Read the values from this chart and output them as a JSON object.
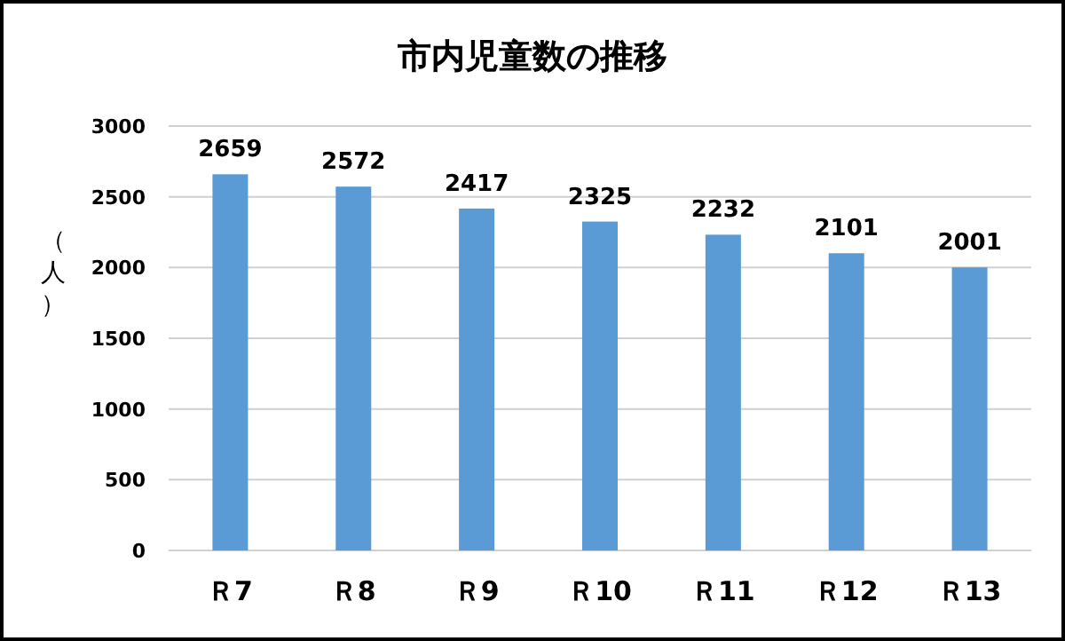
{
  "chart_data": {
    "type": "bar",
    "title": "市内児童数の推移",
    "ylabel": "（人）",
    "categories": [
      "Ｒ7",
      "Ｒ8",
      "Ｒ9",
      "Ｒ10",
      "Ｒ11",
      "Ｒ12",
      "Ｒ13"
    ],
    "values": [
      2659,
      2572,
      2417,
      2325,
      2232,
      2101,
      2001
    ],
    "color": "#5b9bd5",
    "ylim": [
      0,
      3000
    ],
    "yticks": [
      0,
      500,
      1000,
      1500,
      2000,
      2500,
      3000
    ],
    "grid": "y",
    "data_labels": true
  }
}
